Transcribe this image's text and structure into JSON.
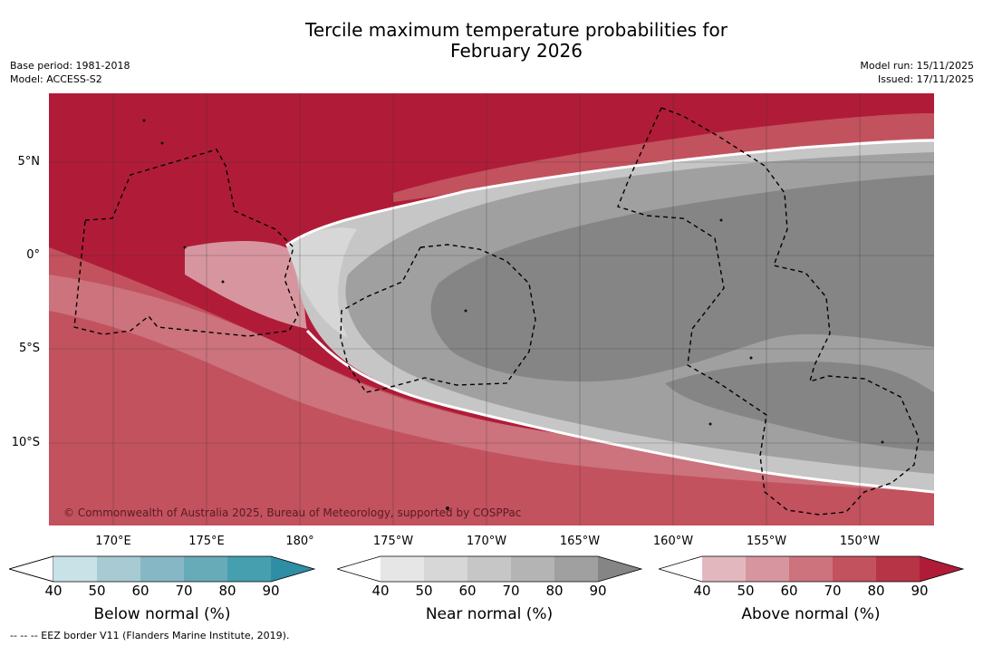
{
  "title": {
    "line1": "Tercile maximum temperature probabilities for",
    "line2": "February 2026"
  },
  "meta": {
    "base_period": "Base period: 1981-2018",
    "model": "Model: ACCESS-S2",
    "model_run": "Model run: 15/11/2025",
    "issued": "Issued: 17/11/2025"
  },
  "map": {
    "lat_labels": [
      "5°N",
      "0°",
      "5°S",
      "10°S"
    ],
    "lon_labels": [
      "170°E",
      "175°E",
      "180°",
      "175°W",
      "170°W",
      "165°W",
      "160°W",
      "155°W",
      "150°W"
    ],
    "copyright": "© Commonwealth of Australia 2025, Bureau of Meteorology, supported by COSPPac"
  },
  "colorbars": [
    {
      "label": "Below normal (%)",
      "ticks": [
        "40",
        "50",
        "60",
        "70",
        "80",
        "90"
      ],
      "colors": [
        "#c8e2e8",
        "#a8cbd3",
        "#86b7c4",
        "#67aab8",
        "#469fae",
        "#2e8ea4"
      ]
    },
    {
      "label": "Near normal (%)",
      "ticks": [
        "40",
        "50",
        "60",
        "70",
        "80",
        "90"
      ],
      "colors": [
        "#e6e6e6",
        "#d7d7d7",
        "#c6c6c6",
        "#b4b4b4",
        "#a0a0a0",
        "#858585"
      ]
    },
    {
      "label": "Above normal (%)",
      "ticks": [
        "40",
        "50",
        "60",
        "70",
        "80",
        "90"
      ],
      "colors": [
        "#e2b8be",
        "#d7969f",
        "#cc737d",
        "#c2525e",
        "#b73447",
        "#b01c38"
      ]
    }
  ],
  "footnote": "--  --  -- EEZ border V11 (Flanders Marine Institute, 2019)."
}
